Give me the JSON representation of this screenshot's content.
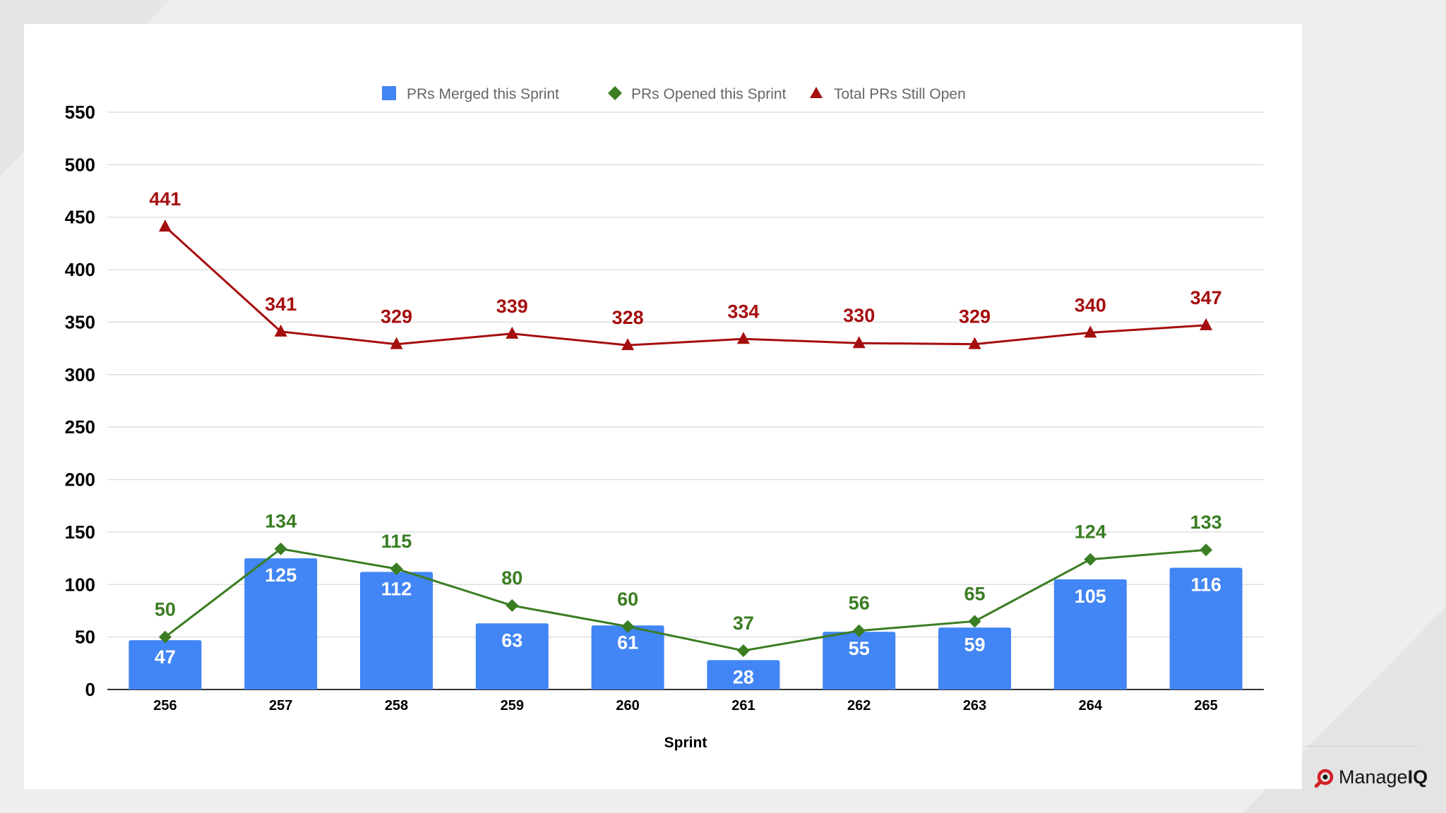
{
  "colors": {
    "merged": "#4285f4",
    "opened": "#3a7d22",
    "still_open": "#a50e0e",
    "grid": "#d9d9d9",
    "axis": "#333333"
  },
  "brand": {
    "name_prefix": "Manage",
    "name_suffix": "IQ",
    "icon": "manageiq-logo-icon"
  },
  "chart_data": {
    "type": "bar",
    "title": "",
    "xlabel": "Sprint",
    "ylabel": "",
    "ylim": [
      0,
      550
    ],
    "yticks": [
      "0",
      "50",
      "100",
      "150",
      "200",
      "250",
      "300",
      "350",
      "400",
      "450",
      "500",
      "550"
    ],
    "grid": true,
    "legend_position": "top",
    "categories": [
      "256",
      "257",
      "258",
      "259",
      "260",
      "261",
      "262",
      "263",
      "264",
      "265"
    ],
    "series": [
      {
        "name": "PRs Merged this Sprint",
        "type": "bar",
        "marker": "square",
        "values": [
          47,
          125,
          112,
          63,
          61,
          28,
          55,
          59,
          105,
          116
        ]
      },
      {
        "name": "PRs Opened this Sprint",
        "type": "line",
        "marker": "diamond",
        "values": [
          50,
          134,
          115,
          80,
          60,
          37,
          56,
          65,
          124,
          133
        ]
      },
      {
        "name": "Total PRs Still Open",
        "type": "line",
        "marker": "triangle",
        "values": [
          441,
          341,
          329,
          339,
          328,
          334,
          330,
          329,
          340,
          347
        ]
      }
    ]
  }
}
